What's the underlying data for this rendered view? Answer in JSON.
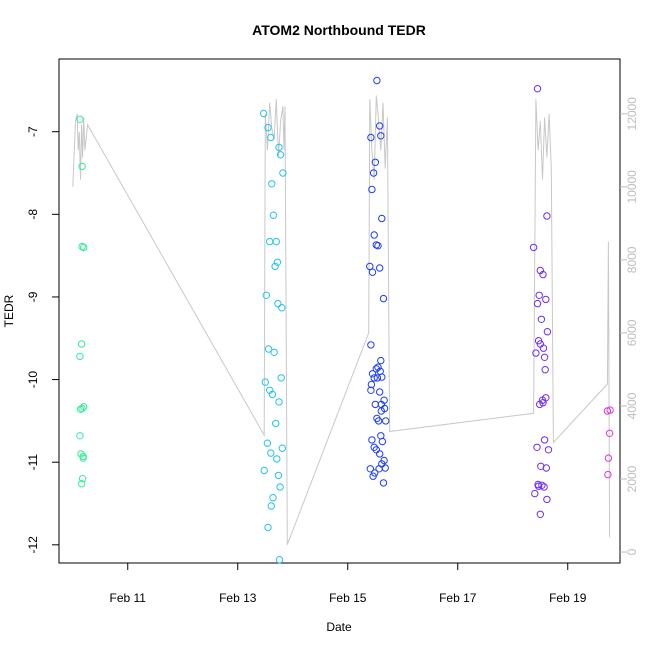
{
  "chart_data": {
    "type": "scatter",
    "title": "ATOM2 Northbound TEDR",
    "xlabel": "Date",
    "ylabel": "TEDR",
    "x_ticks": [
      "Feb 11",
      "Feb 13",
      "Feb 15",
      "Feb 17",
      "Feb 19"
    ],
    "x_tick_values": [
      11,
      13,
      15,
      17,
      19
    ],
    "xlim": [
      9.75,
      19.95
    ],
    "ylim": [
      -12.22,
      -6.12
    ],
    "y_ticks": [
      -12,
      -11,
      -10,
      -9,
      -8,
      -7
    ],
    "y2_ticks": [
      0,
      2000,
      4000,
      6000,
      8000,
      10000,
      12000
    ],
    "y2lim": [
      -300,
      13500
    ],
    "grid": false,
    "colors": {
      "line": "#c8c8c8",
      "right_axis": "#bdbdbd",
      "points": [
        "#33ee99",
        "#22c4f0",
        "#1e3ff2",
        "#6e2ef2",
        "#d93ad9"
      ]
    },
    "series": [
      {
        "x": [
          10.13,
          10.17,
          10.2,
          10.16,
          10.13,
          10.17,
          10.2,
          10.13,
          10.15,
          10.19,
          10.18,
          10.16,
          10.14,
          10.17,
          10.19
        ],
        "y": [
          -6.85,
          -7.42,
          -8.4,
          -9.57,
          -9.72,
          -10.35,
          -10.33,
          -10.68,
          -10.9,
          -10.93,
          -11.2,
          -11.26,
          -10.36,
          -8.39,
          -10.95
        ]
      },
      {
        "x": [
          13.47,
          13.55,
          13.6,
          13.75,
          13.78,
          13.82,
          13.62,
          13.65,
          13.58,
          13.7,
          13.72,
          13.68,
          13.52,
          13.73,
          13.8,
          13.56,
          13.66,
          13.79,
          13.5,
          13.58,
          13.63,
          13.75,
          13.69,
          13.54,
          13.81,
          13.6,
          13.71,
          13.48,
          13.74,
          13.77,
          13.64,
          13.61,
          13.55,
          13.76
        ],
        "y": [
          -6.78,
          -6.95,
          -7.07,
          -7.19,
          -7.28,
          -7.5,
          -7.63,
          -8.01,
          -8.33,
          -8.33,
          -8.58,
          -8.63,
          -8.98,
          -9.08,
          -9.13,
          -9.63,
          -9.67,
          -9.98,
          -10.03,
          -10.13,
          -10.18,
          -10.27,
          -10.53,
          -10.77,
          -10.83,
          -10.89,
          -10.96,
          -11.1,
          -11.16,
          -11.3,
          -11.43,
          -11.53,
          -11.79,
          -12.18
        ]
      },
      {
        "x": [
          15.53,
          15.58,
          15.6,
          15.42,
          15.5,
          15.47,
          15.44,
          15.62,
          15.48,
          15.52,
          15.55,
          15.4,
          15.58,
          15.45,
          15.65,
          15.42,
          15.6,
          15.55,
          15.52,
          15.45,
          15.62,
          15.48,
          15.43,
          15.58,
          15.66,
          15.61,
          15.5,
          15.67,
          15.53,
          15.56,
          15.6,
          15.44,
          15.63,
          15.48,
          15.52,
          15.58,
          15.66,
          15.62,
          15.57,
          15.41,
          15.49,
          15.46,
          15.65,
          15.69,
          15.54,
          15.61,
          15.42,
          15.68,
          15.59
        ],
        "y": [
          -6.38,
          -6.93,
          -7.05,
          -7.07,
          -7.37,
          -7.5,
          -7.7,
          -8.05,
          -8.25,
          -8.37,
          -8.38,
          -8.63,
          -8.65,
          -8.7,
          -9.02,
          -9.58,
          -9.77,
          -9.85,
          -9.87,
          -9.93,
          -9.97,
          -9.98,
          -10.06,
          -10.15,
          -10.25,
          -10.3,
          -10.3,
          -10.35,
          -10.47,
          -10.5,
          -10.68,
          -10.73,
          -10.75,
          -10.82,
          -10.85,
          -10.9,
          -10.98,
          -11.02,
          -11.08,
          -11.08,
          -11.13,
          -11.17,
          -11.25,
          -10.5,
          -9.98,
          -10.38,
          -10.13,
          -11.07,
          -9.9
        ]
      },
      {
        "x": [
          18.45,
          18.62,
          18.38,
          18.5,
          18.55,
          18.48,
          18.6,
          18.45,
          18.52,
          18.63,
          18.47,
          18.5,
          18.56,
          18.42,
          18.59,
          18.6,
          18.54,
          18.49,
          18.58,
          18.44,
          18.65,
          18.51,
          18.61,
          18.46,
          18.53,
          18.57,
          18.4,
          18.62,
          18.5,
          18.47,
          18.55,
          18.58
        ],
        "y": [
          -6.48,
          -8.02,
          -8.4,
          -8.68,
          -8.73,
          -8.98,
          -9.03,
          -9.08,
          -9.27,
          -9.42,
          -9.53,
          -9.57,
          -9.62,
          -9.68,
          -9.88,
          -10.22,
          -10.25,
          -10.3,
          -10.73,
          -10.82,
          -10.85,
          -11.05,
          -11.07,
          -11.27,
          -11.28,
          -11.3,
          -11.38,
          -11.45,
          -11.63,
          -11.29,
          -10.28,
          -9.73
        ]
      },
      {
        "x": [
          19.72,
          19.76,
          19.74,
          19.73,
          19.77
        ],
        "y": [
          -10.38,
          -10.65,
          -10.95,
          -11.15,
          -10.37
        ]
      }
    ],
    "line_series": {
      "axis": "right",
      "x": [
        10.0,
        10.05,
        10.08,
        10.1,
        10.12,
        10.14,
        10.16,
        10.18,
        10.2,
        10.22,
        10.27,
        13.48,
        13.5,
        13.54,
        13.58,
        13.62,
        13.66,
        13.7,
        13.74,
        13.78,
        13.82,
        13.84,
        13.86,
        13.9,
        15.38,
        15.4,
        15.44,
        15.48,
        15.52,
        15.56,
        15.6,
        15.64,
        15.68,
        15.72,
        15.76,
        18.38,
        18.42,
        18.46,
        18.5,
        18.54,
        18.58,
        18.62,
        18.66,
        18.7,
        18.74,
        19.72,
        19.74,
        19.76
      ],
      "y": [
        10000,
        11800,
        12000,
        11000,
        11500,
        10200,
        11700,
        10800,
        11900,
        11000,
        11700,
        3200,
        12000,
        11000,
        12300,
        11600,
        11300,
        12400,
        10800,
        11800,
        12200,
        11000,
        12200,
        200,
        6000,
        12400,
        11000,
        10200,
        12500,
        11800,
        11000,
        12300,
        10500,
        11900,
        3300,
        3800,
        12400,
        11000,
        11800,
        10200,
        11900,
        10800,
        12000,
        10500,
        3000,
        4600,
        8500,
        400
      ]
    }
  }
}
